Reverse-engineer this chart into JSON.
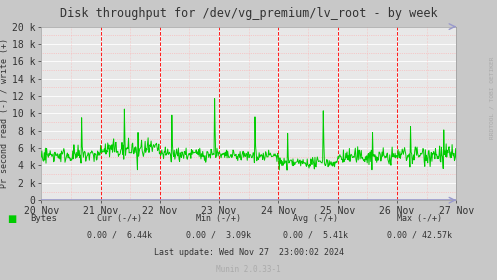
{
  "title": "Disk throughput for /dev/vg_premium/lv_root - by week",
  "ylabel": "Pr second read (-) / write (+)",
  "right_label": "RRDTOOL / TOBI OETIKER",
  "bg_color": "#c8c8c8",
  "plot_bg_color": "#e8e8e8",
  "grid_color_major": "#ffffff",
  "grid_color_minor": "#ffaaaa",
  "line_color": "#00cc00",
  "vline_color": "#ff0000",
  "zero_line_color": "#9999cc",
  "x_tick_labels": [
    "20 Nov",
    "21 Nov",
    "22 Nov",
    "23 Nov",
    "24 Nov",
    "25 Nov",
    "26 Nov",
    "27 Nov"
  ],
  "ylim": [
    0,
    20000
  ],
  "y_tick_vals": [
    0,
    2000,
    4000,
    6000,
    8000,
    10000,
    12000,
    14000,
    16000,
    18000,
    20000
  ],
  "y_tick_labels": [
    "0",
    "2 k",
    "4 k",
    "6 k",
    "8 k",
    "10 k",
    "12 k",
    "14 k",
    "16 k",
    "18 k",
    "20 k"
  ],
  "legend_label": "Bytes",
  "legend_color": "#00cc00",
  "cur": "0.00 /  6.44k",
  "min_val": "0.00 /  3.09k",
  "avg": "0.00 /  5.41k",
  "max_val": "0.00 / 42.57k",
  "last_update": "Last update: Wed Nov 27  23:00:02 2024",
  "munin_version": "Munin 2.0.33-1",
  "n_points": 700,
  "base_value": 5000,
  "spike_positions": [
    68,
    140,
    163,
    220,
    292,
    360,
    415,
    475,
    558,
    622,
    678
  ],
  "spike_values": [
    9500,
    10500,
    7800,
    9800,
    11700,
    9600,
    7700,
    10300,
    7800,
    8500,
    8100
  ]
}
